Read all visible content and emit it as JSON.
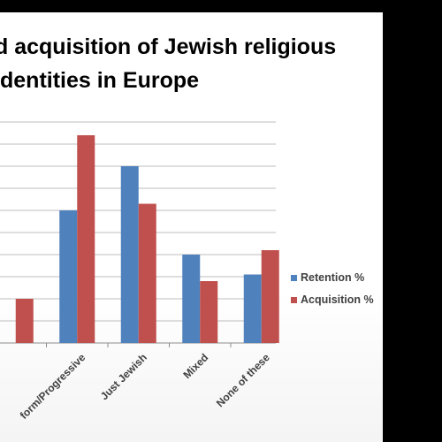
{
  "slide": {
    "title_line1": "d acquisition of Jewish religious",
    "title_line2": "dentities in Europe"
  },
  "chart_data": {
    "type": "bar",
    "categories": [
      "",
      "form/Progressive",
      "Just Jewish",
      "Mixed",
      "None of these"
    ],
    "series": [
      {
        "name": "Retention %",
        "color": "#4f81bd",
        "values": [
          null,
          30,
          40,
          20,
          15.5
        ]
      },
      {
        "name": "Acquisition %",
        "color": "#c0504d",
        "values": [
          10,
          47,
          31.5,
          14,
          21
        ]
      }
    ],
    "grid": true,
    "legend_position": "right"
  }
}
